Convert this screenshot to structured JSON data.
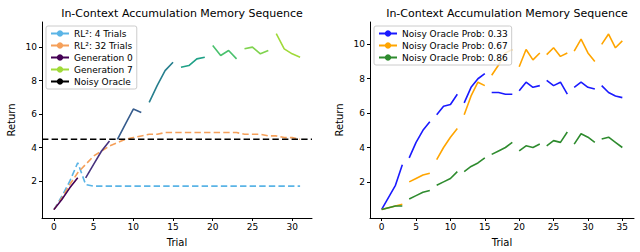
{
  "chart_data": [
    {
      "type": "line",
      "title": "In-Context Accumulation Memory Sequence",
      "x_label": "Trial",
      "y_label": "Return",
      "xlim": [
        -1.5,
        32.5
      ],
      "xticks": [
        0,
        5,
        10,
        15,
        20,
        25,
        30
      ],
      "ylim": [
        -0.2,
        11.5
      ],
      "yticks": [
        2,
        4,
        6,
        8,
        10
      ],
      "grid": false,
      "legend": "upper left",
      "series": [
        {
          "name": "RL²: 4 Trials",
          "color": "#5ab4e6",
          "line_style": "dashed",
          "x": [
            0,
            1,
            2,
            3,
            4,
            5,
            6,
            7,
            8,
            9,
            10,
            11,
            12,
            13,
            14,
            15,
            16,
            17,
            18,
            19,
            20,
            21,
            22,
            23,
            24,
            25,
            26,
            27,
            28,
            29,
            30,
            31
          ],
          "values": [
            0.3,
            1.1,
            2.0,
            3.1,
            1.8,
            1.7,
            1.7,
            1.7,
            1.7,
            1.7,
            1.7,
            1.7,
            1.7,
            1.7,
            1.7,
            1.7,
            1.7,
            1.7,
            1.7,
            1.7,
            1.7,
            1.7,
            1.7,
            1.7,
            1.7,
            1.7,
            1.7,
            1.7,
            1.7,
            1.7,
            1.7,
            1.7
          ]
        },
        {
          "name": "RL²: 32 Trials",
          "color": "#f5a05a",
          "line_style": "dashed",
          "x": [
            0,
            1,
            2,
            3,
            4,
            5,
            6,
            7,
            8,
            9,
            10,
            11,
            12,
            13,
            14,
            15,
            16,
            17,
            18,
            19,
            20,
            21,
            22,
            23,
            24,
            25,
            26,
            27,
            28,
            29,
            30,
            31
          ],
          "values": [
            0.3,
            1.0,
            1.8,
            2.5,
            3.0,
            3.5,
            3.8,
            4.1,
            4.3,
            4.5,
            4.6,
            4.7,
            4.8,
            4.8,
            4.9,
            4.9,
            4.9,
            4.9,
            4.9,
            4.9,
            4.9,
            4.9,
            4.9,
            4.9,
            4.8,
            4.8,
            4.8,
            4.7,
            4.7,
            4.6,
            4.6,
            4.5
          ]
        },
        {
          "name": "Generation 0",
          "color": "#440154",
          "line_style": "solid",
          "x": [
            0,
            1,
            2,
            3
          ],
          "values": [
            0.3,
            0.9,
            1.6,
            2.2
          ]
        },
        {
          "color": "#46327e",
          "line_style": "solid",
          "x": [
            4,
            5,
            6,
            7
          ],
          "values": [
            2.2,
            3.0,
            3.8,
            4.4
          ]
        },
        {
          "color": "#365c8d",
          "line_style": "solid",
          "x": [
            8,
            9,
            10,
            11
          ],
          "values": [
            4.5,
            5.4,
            6.3,
            6.1
          ]
        },
        {
          "color": "#277f8e",
          "line_style": "solid",
          "x": [
            12,
            13,
            14,
            15
          ],
          "values": [
            6.7,
            7.7,
            8.6,
            9.1
          ]
        },
        {
          "color": "#1fa187",
          "line_style": "solid",
          "x": [
            16,
            17,
            18,
            19
          ],
          "values": [
            8.8,
            8.9,
            9.3,
            9.4
          ]
        },
        {
          "color": "#4ac16d",
          "line_style": "solid",
          "x": [
            20,
            21,
            22,
            23
          ],
          "values": [
            10.1,
            9.5,
            9.8,
            9.3
          ]
        },
        {
          "color": "#7fd34e",
          "line_style": "solid",
          "x": [
            24,
            25,
            26,
            27
          ],
          "values": [
            9.9,
            10.0,
            9.6,
            9.8
          ]
        },
        {
          "name": "Generation 7",
          "color": "#a0da39",
          "line_style": "solid",
          "x": [
            28,
            29,
            30,
            31
          ],
          "values": [
            10.8,
            9.9,
            9.6,
            9.4
          ]
        },
        {
          "name": "Noisy Oracle",
          "color": "#000000",
          "line_style": "dashed",
          "x": [
            -1.5,
            32.5
          ],
          "values": [
            4.5,
            4.5
          ]
        }
      ]
    },
    {
      "type": "line",
      "title": "In-Context Accumulation Memory Sequence",
      "x_label": "Trial",
      "y_label": "Return",
      "xlim": [
        -1.7,
        36.7
      ],
      "xticks": [
        0,
        5,
        10,
        15,
        20,
        25,
        30,
        35
      ],
      "ylim": [
        -0.1,
        11.3
      ],
      "yticks": [
        2,
        4,
        6,
        8,
        10
      ],
      "grid": false,
      "legend": "upper left",
      "series": [
        {
          "name": "Noisy Oracle Prob: 0.33",
          "color": "#1a1aff",
          "line_style": "solid",
          "segments": [
            {
              "x": [
                0,
                1,
                2,
                3
              ],
              "values": [
                0.4,
                1.1,
                1.8,
                3.0
              ]
            },
            {
              "x": [
                4,
                5,
                6,
                7
              ],
              "values": [
                3.4,
                4.3,
                5.0,
                5.5
              ]
            },
            {
              "x": [
                8,
                9,
                10,
                11
              ],
              "values": [
                5.9,
                6.4,
                6.5,
                7.1
              ]
            },
            {
              "x": [
                12,
                13,
                14,
                15
              ],
              "values": [
                6.6,
                7.5,
                8.0,
                8.3
              ]
            },
            {
              "x": [
                16,
                17,
                18,
                19
              ],
              "values": [
                7.2,
                7.2,
                7.1,
                7.1
              ]
            },
            {
              "x": [
                20,
                21,
                22,
                23
              ],
              "values": [
                7.3,
                7.8,
                7.5,
                7.6
              ]
            },
            {
              "x": [
                24,
                25,
                26,
                27
              ],
              "values": [
                7.9,
                7.6,
                7.8,
                7.1
              ]
            },
            {
              "x": [
                28,
                29,
                30,
                31
              ],
              "values": [
                7.5,
                7.8,
                7.5,
                7.4
              ]
            },
            {
              "x": [
                32,
                33,
                34,
                35
              ],
              "values": [
                7.6,
                7.2,
                7.0,
                6.9
              ]
            }
          ]
        },
        {
          "name": "Noisy Oracle Prob: 0.67",
          "color": "#ffa500",
          "line_style": "solid",
          "segments": [
            {
              "x": [
                0,
                1,
                2,
                3
              ],
              "values": [
                0.4,
                0.5,
                0.6,
                0.7
              ]
            },
            {
              "x": [
                4,
                5,
                6,
                7
              ],
              "values": [
                2.0,
                2.2,
                2.4,
                2.5
              ]
            },
            {
              "x": [
                8,
                9,
                10,
                11
              ],
              "values": [
                3.3,
                4.0,
                4.6,
                5.1
              ]
            },
            {
              "x": [
                12,
                13,
                14,
                15
              ],
              "values": [
                5.9,
                7.0,
                7.8,
                7.6
              ]
            },
            {
              "x": [
                16,
                17,
                18,
                19
              ],
              "values": [
                8.2,
                8.8,
                9.5,
                9.7
              ]
            },
            {
              "x": [
                20,
                21,
                22,
                23
              ],
              "values": [
                8.7,
                9.7,
                9.1,
                9.5
              ]
            },
            {
              "x": [
                24,
                25,
                26,
                27
              ],
              "values": [
                9.4,
                9.8,
                9.3,
                9.5
              ]
            },
            {
              "x": [
                28,
                29,
                30,
                31
              ],
              "values": [
                9.6,
                10.3,
                9.5,
                9.0
              ]
            },
            {
              "x": [
                32,
                33,
                34,
                35
              ],
              "values": [
                10.0,
                10.6,
                9.8,
                10.2
              ]
            }
          ]
        },
        {
          "name": "Noisy Oracle Prob: 0.86",
          "color": "#2e8b2e",
          "line_style": "solid",
          "segments": [
            {
              "x": [
                0,
                1,
                2,
                3
              ],
              "values": [
                0.4,
                0.5,
                0.6,
                0.6
              ]
            },
            {
              "x": [
                4,
                5,
                6,
                7
              ],
              "values": [
                1.0,
                1.2,
                1.4,
                1.5
              ]
            },
            {
              "x": [
                8,
                9,
                10,
                11
              ],
              "values": [
                1.8,
                2.0,
                2.2,
                2.6
              ]
            },
            {
              "x": [
                12,
                13,
                14,
                15
              ],
              "values": [
                2.6,
                2.9,
                3.1,
                3.4
              ]
            },
            {
              "x": [
                16,
                17,
                18,
                19
              ],
              "values": [
                3.6,
                3.8,
                4.0,
                4.3
              ]
            },
            {
              "x": [
                20,
                21,
                22,
                23
              ],
              "values": [
                3.8,
                4.1,
                4.0,
                4.2
              ]
            },
            {
              "x": [
                24,
                25,
                26,
                27
              ],
              "values": [
                4.1,
                4.4,
                4.3,
                4.9
              ]
            },
            {
              "x": [
                28,
                29,
                30,
                31
              ],
              "values": [
                4.2,
                4.8,
                4.6,
                4.3
              ]
            },
            {
              "x": [
                32,
                33,
                34,
                35
              ],
              "values": [
                4.5,
                4.6,
                4.3,
                4.0
              ]
            }
          ]
        }
      ]
    }
  ]
}
